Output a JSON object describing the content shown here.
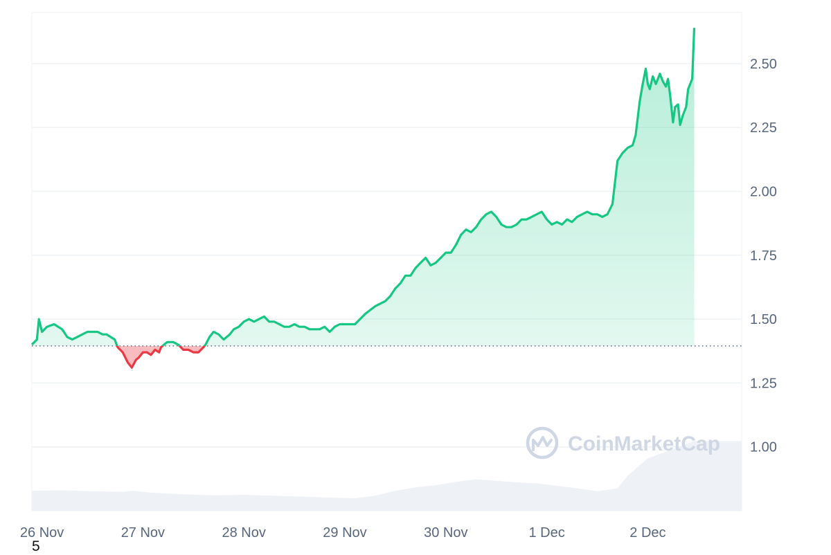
{
  "chart_data": {
    "type": "area",
    "y_axis_side": "right",
    "ylim": [
      0.75,
      2.7
    ],
    "yticks": [
      1.0,
      1.25,
      1.5,
      1.75,
      2.0,
      2.25,
      2.5
    ],
    "ytick_labels": [
      "1.00",
      "1.25",
      "1.50",
      "1.75",
      "2.00",
      "2.25",
      "2.50"
    ],
    "x_range_days": [
      0,
      7.03
    ],
    "xticks": [
      0.1,
      1.1,
      2.1,
      3.1,
      4.1,
      5.1,
      6.1
    ],
    "xtick_labels": [
      "26 Nov",
      "27 Nov",
      "28 Nov",
      "29 Nov",
      "30 Nov",
      "1 Dec",
      "2 Dec"
    ],
    "reference_value": 1.395,
    "up_color": "#16c784",
    "down_color": "#ea3943",
    "grid": "horizontal",
    "series": [
      {
        "points": [
          [
            0.0,
            1.4
          ],
          [
            0.05,
            1.42
          ],
          [
            0.07,
            1.5
          ],
          [
            0.1,
            1.45
          ],
          [
            0.15,
            1.47
          ],
          [
            0.22,
            1.48
          ],
          [
            0.3,
            1.46
          ],
          [
            0.35,
            1.43
          ],
          [
            0.4,
            1.42
          ],
          [
            0.45,
            1.43
          ],
          [
            0.5,
            1.44
          ],
          [
            0.55,
            1.45
          ],
          [
            0.6,
            1.45
          ],
          [
            0.65,
            1.45
          ],
          [
            0.7,
            1.44
          ],
          [
            0.74,
            1.44
          ],
          [
            0.78,
            1.43
          ],
          [
            0.82,
            1.42
          ],
          [
            0.85,
            1.39
          ],
          [
            0.9,
            1.37
          ],
          [
            0.95,
            1.33
          ],
          [
            0.99,
            1.31
          ],
          [
            1.03,
            1.34
          ],
          [
            1.06,
            1.35
          ],
          [
            1.1,
            1.37
          ],
          [
            1.14,
            1.37
          ],
          [
            1.18,
            1.36
          ],
          [
            1.22,
            1.38
          ],
          [
            1.26,
            1.37
          ],
          [
            1.28,
            1.39
          ],
          [
            1.31,
            1.4
          ],
          [
            1.34,
            1.41
          ],
          [
            1.4,
            1.41
          ],
          [
            1.45,
            1.4
          ],
          [
            1.5,
            1.38
          ],
          [
            1.55,
            1.38
          ],
          [
            1.6,
            1.37
          ],
          [
            1.65,
            1.37
          ],
          [
            1.7,
            1.39
          ],
          [
            1.72,
            1.4
          ],
          [
            1.76,
            1.43
          ],
          [
            1.8,
            1.45
          ],
          [
            1.85,
            1.44
          ],
          [
            1.9,
            1.42
          ],
          [
            1.96,
            1.44
          ],
          [
            2.0,
            1.46
          ],
          [
            2.05,
            1.47
          ],
          [
            2.1,
            1.49
          ],
          [
            2.15,
            1.5
          ],
          [
            2.2,
            1.49
          ],
          [
            2.25,
            1.5
          ],
          [
            2.3,
            1.51
          ],
          [
            2.35,
            1.49
          ],
          [
            2.4,
            1.49
          ],
          [
            2.45,
            1.48
          ],
          [
            2.5,
            1.47
          ],
          [
            2.55,
            1.47
          ],
          [
            2.6,
            1.48
          ],
          [
            2.65,
            1.47
          ],
          [
            2.7,
            1.47
          ],
          [
            2.75,
            1.46
          ],
          [
            2.8,
            1.46
          ],
          [
            2.85,
            1.46
          ],
          [
            2.9,
            1.47
          ],
          [
            2.95,
            1.45
          ],
          [
            3.0,
            1.47
          ],
          [
            3.05,
            1.48
          ],
          [
            3.1,
            1.48
          ],
          [
            3.15,
            1.48
          ],
          [
            3.2,
            1.48
          ],
          [
            3.3,
            1.52
          ],
          [
            3.4,
            1.55
          ],
          [
            3.5,
            1.57
          ],
          [
            3.55,
            1.59
          ],
          [
            3.6,
            1.62
          ],
          [
            3.65,
            1.64
          ],
          [
            3.7,
            1.67
          ],
          [
            3.75,
            1.67
          ],
          [
            3.8,
            1.7
          ],
          [
            3.85,
            1.72
          ],
          [
            3.9,
            1.74
          ],
          [
            3.95,
            1.71
          ],
          [
            4.0,
            1.72
          ],
          [
            4.05,
            1.74
          ],
          [
            4.1,
            1.76
          ],
          [
            4.15,
            1.76
          ],
          [
            4.2,
            1.79
          ],
          [
            4.25,
            1.83
          ],
          [
            4.3,
            1.85
          ],
          [
            4.35,
            1.84
          ],
          [
            4.4,
            1.86
          ],
          [
            4.45,
            1.89
          ],
          [
            4.5,
            1.91
          ],
          [
            4.55,
            1.92
          ],
          [
            4.6,
            1.9
          ],
          [
            4.65,
            1.87
          ],
          [
            4.7,
            1.86
          ],
          [
            4.75,
            1.86
          ],
          [
            4.8,
            1.87
          ],
          [
            4.85,
            1.89
          ],
          [
            4.9,
            1.89
          ],
          [
            4.95,
            1.9
          ],
          [
            5.0,
            1.91
          ],
          [
            5.05,
            1.92
          ],
          [
            5.1,
            1.89
          ],
          [
            5.15,
            1.87
          ],
          [
            5.2,
            1.88
          ],
          [
            5.25,
            1.87
          ],
          [
            5.3,
            1.89
          ],
          [
            5.35,
            1.88
          ],
          [
            5.4,
            1.9
          ],
          [
            5.45,
            1.91
          ],
          [
            5.5,
            1.92
          ],
          [
            5.55,
            1.91
          ],
          [
            5.6,
            1.91
          ],
          [
            5.65,
            1.9
          ],
          [
            5.7,
            1.91
          ],
          [
            5.75,
            1.95
          ],
          [
            5.78,
            2.05
          ],
          [
            5.8,
            2.12
          ],
          [
            5.85,
            2.15
          ],
          [
            5.9,
            2.17
          ],
          [
            5.95,
            2.18
          ],
          [
            5.98,
            2.22
          ],
          [
            6.02,
            2.35
          ],
          [
            6.05,
            2.42
          ],
          [
            6.08,
            2.48
          ],
          [
            6.1,
            2.42
          ],
          [
            6.12,
            2.4
          ],
          [
            6.15,
            2.45
          ],
          [
            6.18,
            2.42
          ],
          [
            6.2,
            2.44
          ],
          [
            6.22,
            2.46
          ],
          [
            6.25,
            2.43
          ],
          [
            6.28,
            2.41
          ],
          [
            6.3,
            2.44
          ],
          [
            6.32,
            2.38
          ],
          [
            6.35,
            2.27
          ],
          [
            6.37,
            2.33
          ],
          [
            6.4,
            2.34
          ],
          [
            6.42,
            2.26
          ],
          [
            6.45,
            2.3
          ],
          [
            6.48,
            2.33
          ],
          [
            6.5,
            2.4
          ],
          [
            6.52,
            2.42
          ],
          [
            6.54,
            2.44
          ],
          [
            6.56,
            2.64
          ]
        ]
      }
    ],
    "volume": [
      [
        0.0,
        0.04
      ],
      [
        0.3,
        0.041
      ],
      [
        0.6,
        0.039
      ],
      [
        0.9,
        0.038
      ],
      [
        1.0,
        0.04
      ],
      [
        1.2,
        0.036
      ],
      [
        1.5,
        0.033
      ],
      [
        1.8,
        0.031
      ],
      [
        2.1,
        0.032
      ],
      [
        2.4,
        0.03
      ],
      [
        2.7,
        0.028
      ],
      [
        3.0,
        0.026
      ],
      [
        3.2,
        0.025
      ],
      [
        3.4,
        0.03
      ],
      [
        3.6,
        0.04
      ],
      [
        3.8,
        0.047
      ],
      [
        4.0,
        0.051
      ],
      [
        4.2,
        0.058
      ],
      [
        4.4,
        0.063
      ],
      [
        4.6,
        0.06
      ],
      [
        4.8,
        0.057
      ],
      [
        5.0,
        0.055
      ],
      [
        5.2,
        0.05
      ],
      [
        5.4,
        0.045
      ],
      [
        5.6,
        0.039
      ],
      [
        5.8,
        0.045
      ],
      [
        5.9,
        0.07
      ],
      [
        6.1,
        0.105
      ],
      [
        6.3,
        0.12
      ],
      [
        6.5,
        0.135
      ],
      [
        6.56,
        0.14
      ]
    ],
    "watermark": "CoinMarketCap"
  },
  "footnote": "5"
}
